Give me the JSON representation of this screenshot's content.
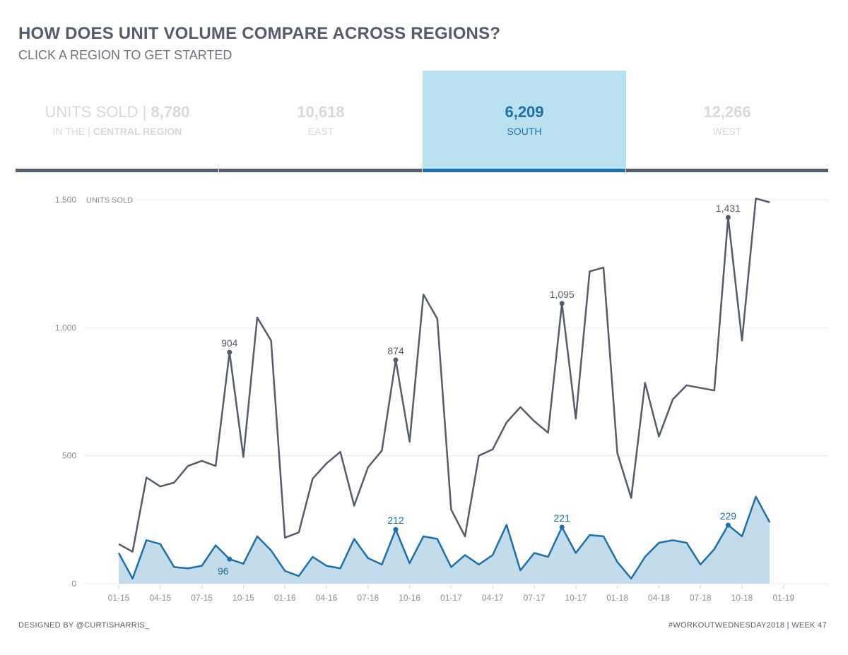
{
  "header": {
    "title": "HOW DOES UNIT VOLUME COMPARE ACROSS REGIONS?",
    "subtitle": "CLICK A REGION TO GET STARTED"
  },
  "kpis": [
    {
      "value_prefix": "UNITS SOLD | ",
      "value": "8,780",
      "label_prefix": "IN THE | ",
      "label": "CENTRAL REGION",
      "selected": false
    },
    {
      "value_prefix": "",
      "value": "10,618",
      "label_prefix": "",
      "label": "EAST",
      "selected": false
    },
    {
      "value_prefix": "",
      "value": "6,209",
      "label_prefix": "",
      "label": "SOUTH",
      "selected": true
    },
    {
      "value_prefix": "",
      "value": "12,266",
      "label_prefix": "",
      "label": "WEST",
      "selected": false
    }
  ],
  "footer": {
    "left": "DESIGNED BY @CURTISHARRIS_",
    "right": "#WORKOUTWEDNESDAY2018 | WEEK 47"
  },
  "colors": {
    "total_line": "#555c69",
    "region_line": "#1f6fa5",
    "region_fill": "#c3dcec",
    "selected_bg": "#b9e1f0"
  },
  "chart_data": {
    "type": "line",
    "ylabel": "UNITS SOLD",
    "ylim": [
      0,
      1500
    ],
    "yticks": [
      0,
      500,
      1000,
      1500
    ],
    "ytick_labels": [
      "0",
      "500",
      "1,000",
      "1,500"
    ],
    "x_tick_labels": [
      "01-15",
      "04-15",
      "07-15",
      "10-15",
      "01-16",
      "04-16",
      "07-16",
      "10-16",
      "01-17",
      "04-17",
      "07-17",
      "10-17",
      "01-18",
      "04-18",
      "07-18",
      "10-18",
      "01-19"
    ],
    "grid": "horizontal",
    "x": [
      "2015-01",
      "2015-02",
      "2015-03",
      "2015-04",
      "2015-05",
      "2015-06",
      "2015-07",
      "2015-08",
      "2015-09",
      "2015-10",
      "2015-11",
      "2015-12",
      "2016-01",
      "2016-02",
      "2016-03",
      "2016-04",
      "2016-05",
      "2016-06",
      "2016-07",
      "2016-08",
      "2016-09",
      "2016-10",
      "2016-11",
      "2016-12",
      "2017-01",
      "2017-02",
      "2017-03",
      "2017-04",
      "2017-05",
      "2017-06",
      "2017-07",
      "2017-08",
      "2017-09",
      "2017-10",
      "2017-11",
      "2017-12",
      "2018-01",
      "2018-02",
      "2018-03",
      "2018-04",
      "2018-05",
      "2018-06",
      "2018-07",
      "2018-08",
      "2018-09",
      "2018-10",
      "2018-11",
      "2018-12"
    ],
    "series": [
      {
        "name": "",
        "values": [
          155,
          125,
          415,
          380,
          395,
          460,
          480,
          460,
          904,
          495,
          1040,
          950,
          180,
          200,
          410,
          470,
          515,
          305,
          455,
          520,
          874,
          555,
          1130,
          1035,
          290,
          185,
          500,
          525,
          630,
          690,
          635,
          590,
          1095,
          645,
          1220,
          1235,
          510,
          335,
          785,
          575,
          720,
          775,
          765,
          755,
          1431,
          950,
          1505,
          1490
        ]
      },
      {
        "name": "",
        "values": [
          120,
          20,
          170,
          155,
          65,
          60,
          70,
          150,
          96,
          78,
          185,
          130,
          50,
          30,
          105,
          70,
          60,
          175,
          100,
          75,
          212,
          80,
          185,
          175,
          65,
          112,
          75,
          112,
          230,
          52,
          120,
          105,
          221,
          120,
          190,
          185,
          85,
          20,
          105,
          160,
          170,
          160,
          75,
          135,
          229,
          185,
          340,
          240
        ]
      }
    ],
    "annotations": [
      {
        "series": 0,
        "x": "2015-09",
        "label": "904"
      },
      {
        "series": 0,
        "x": "2016-09",
        "label": "874"
      },
      {
        "series": 0,
        "x": "2017-09",
        "label": "1,095"
      },
      {
        "series": 0,
        "x": "2018-09",
        "label": "1,431"
      },
      {
        "series": 1,
        "x": "2015-09",
        "label": "96"
      },
      {
        "series": 1,
        "x": "2016-09",
        "label": "212"
      },
      {
        "series": 1,
        "x": "2017-09",
        "label": "221"
      },
      {
        "series": 1,
        "x": "2018-09",
        "label": "229"
      }
    ]
  }
}
